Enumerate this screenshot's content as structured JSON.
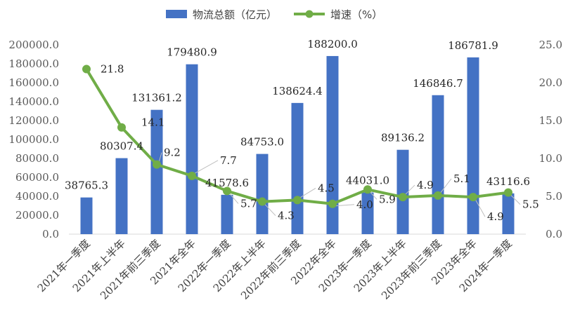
{
  "chart_data": {
    "type": "bar+line",
    "categories": [
      "2021年一季度",
      "2021年上半年",
      "2021年前三季度",
      "2021年全年",
      "2022年一季度",
      "2022年上半年",
      "2022年前三季度",
      "2022年全年",
      "2023年一季度",
      "2023年上半年",
      "2023年前三季度",
      "2023年全年",
      "2024年一季度"
    ],
    "series": [
      {
        "name": "物流总额（亿元）",
        "type": "bar",
        "axis": "left",
        "color": "#4472C4",
        "values": [
          38765.3,
          80307.4,
          131361.2,
          179480.9,
          41578.6,
          84753.0,
          138624.4,
          188200.0,
          44031.0,
          89136.2,
          146846.7,
          186781.9,
          43116.6
        ],
        "labels": [
          "38765.3",
          "80307.4",
          "131361.2",
          "179480.9",
          "41578.6",
          "84753.0",
          "138624.4",
          "188200.0",
          "44031.0",
          "89136.2",
          "146846.7",
          "186781.9",
          "43116.6"
        ]
      },
      {
        "name": "增速（%）",
        "type": "line",
        "axis": "right",
        "color": "#70AD47",
        "values": [
          21.8,
          14.1,
          9.2,
          7.7,
          5.7,
          4.3,
          4.5,
          4.0,
          5.9,
          4.9,
          5.1,
          4.9,
          5.5
        ],
        "labels": [
          "21.8",
          "14.1",
          "9.2",
          "7.7",
          "5.7",
          "4.3",
          "4.5",
          "4.0",
          "5.9",
          "4.9",
          "5.1",
          "4.9",
          "5.5"
        ]
      }
    ],
    "y_left": {
      "min": 0,
      "max": 200000,
      "step": 20000,
      "tick_labels": [
        "0.0",
        "20000.0",
        "40000.0",
        "60000.0",
        "80000.0",
        "100000.0",
        "120000.0",
        "140000.0",
        "160000.0",
        "180000.0",
        "200000.0"
      ]
    },
    "y_right": {
      "min": 0,
      "max": 25,
      "step": 5,
      "tick_labels": [
        "0.0",
        "5.0",
        "10.0",
        "15.0",
        "20.0",
        "25.0"
      ]
    },
    "legend_position": "top",
    "grid": false
  }
}
